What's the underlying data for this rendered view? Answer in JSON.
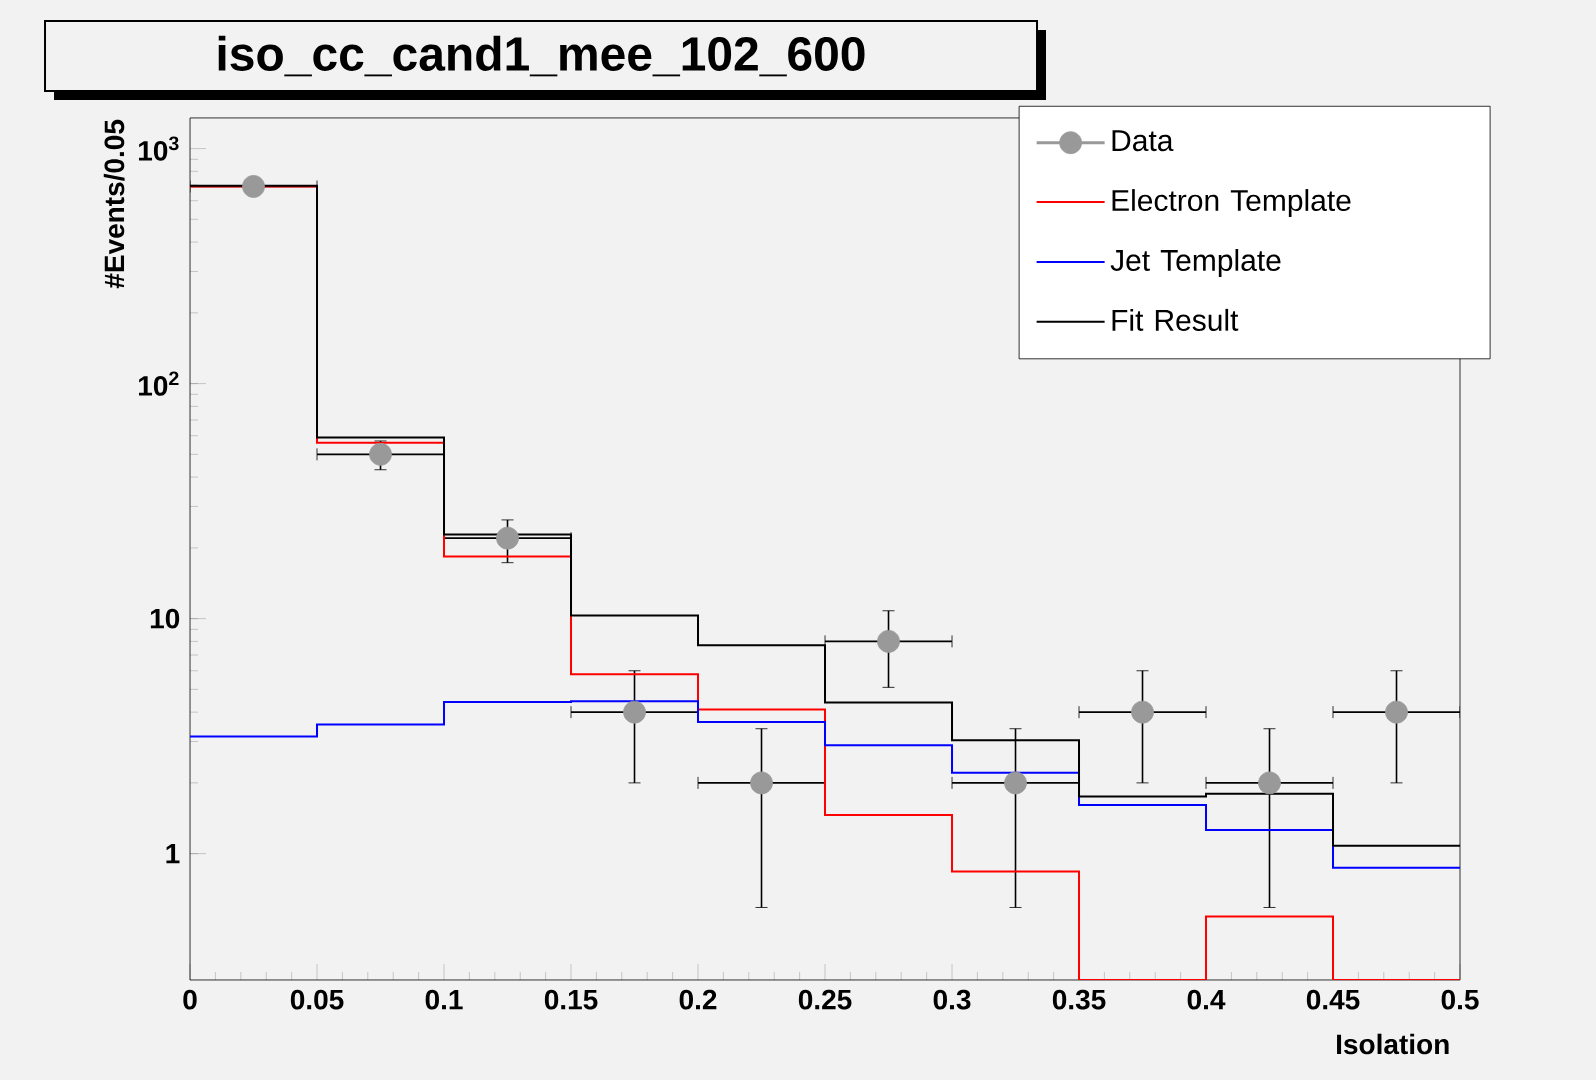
{
  "chart_data": {
    "type": "histogram",
    "title": "iso_cc_cand1_mee_102_600",
    "xlabel": "Isolation",
    "ylabel": "#Events/0.05",
    "bins": [
      0,
      0.05,
      0.1,
      0.15,
      0.2,
      0.25,
      0.3,
      0.35,
      0.4,
      0.45,
      0.5
    ],
    "series": [
      {
        "name": "Data",
        "type": "scatter",
        "color": "#999999",
        "x": [
          0.025,
          0.075,
          0.125,
          0.175,
          0.225,
          0.275,
          0.325,
          0.375,
          0.425,
          0.475
        ],
        "values": [
          690,
          50,
          22,
          4,
          2,
          8,
          2,
          4,
          2,
          4
        ],
        "errors": [
          null,
          [
            43,
            57
          ],
          [
            17.3,
            26.3
          ],
          [
            2,
            6
          ],
          [
            0.59,
            3.4
          ],
          [
            5.1,
            10.8
          ],
          [
            0.59,
            3.4
          ],
          [
            2,
            6
          ],
          [
            0.59,
            3.4
          ],
          [
            2,
            6
          ]
        ],
        "xerrors": [
          0.025,
          0.025,
          0.025,
          0.025,
          0.025,
          0.025,
          0.025,
          0.025,
          0.025,
          0.025
        ]
      },
      {
        "name": "Electron Template",
        "color": "#ff0000",
        "values": [
          690,
          56,
          18.4,
          5.8,
          4.1,
          1.46,
          0.84,
          null,
          0.54,
          null
        ]
      },
      {
        "name": "Jet Template",
        "color": "#0000ff",
        "values": [
          3.15,
          3.54,
          4.42,
          4.45,
          3.63,
          2.89,
          2.21,
          1.61,
          1.26,
          0.87
        ]
      },
      {
        "name": "Fit Result",
        "color": "#000000",
        "values": [
          695,
          59,
          22.8,
          10.3,
          7.7,
          4.4,
          3.04,
          1.75,
          1.8,
          1.08
        ]
      }
    ],
    "xlim": [
      0,
      0.5
    ],
    "ylim": [
      0.29,
      1350
    ],
    "xticks": [
      0,
      0.05,
      0.1,
      0.15,
      0.2,
      0.25,
      0.3,
      0.35,
      0.4,
      0.45,
      0.5
    ],
    "yticks": [
      1,
      10,
      {
        "value": 100,
        "label": "10$^{2}$"
      },
      {
        "value": 1000,
        "label": "10$^{3}$"
      }
    ],
    "log": "y",
    "grid": false,
    "legend": "top right",
    "marker": "circle"
  }
}
